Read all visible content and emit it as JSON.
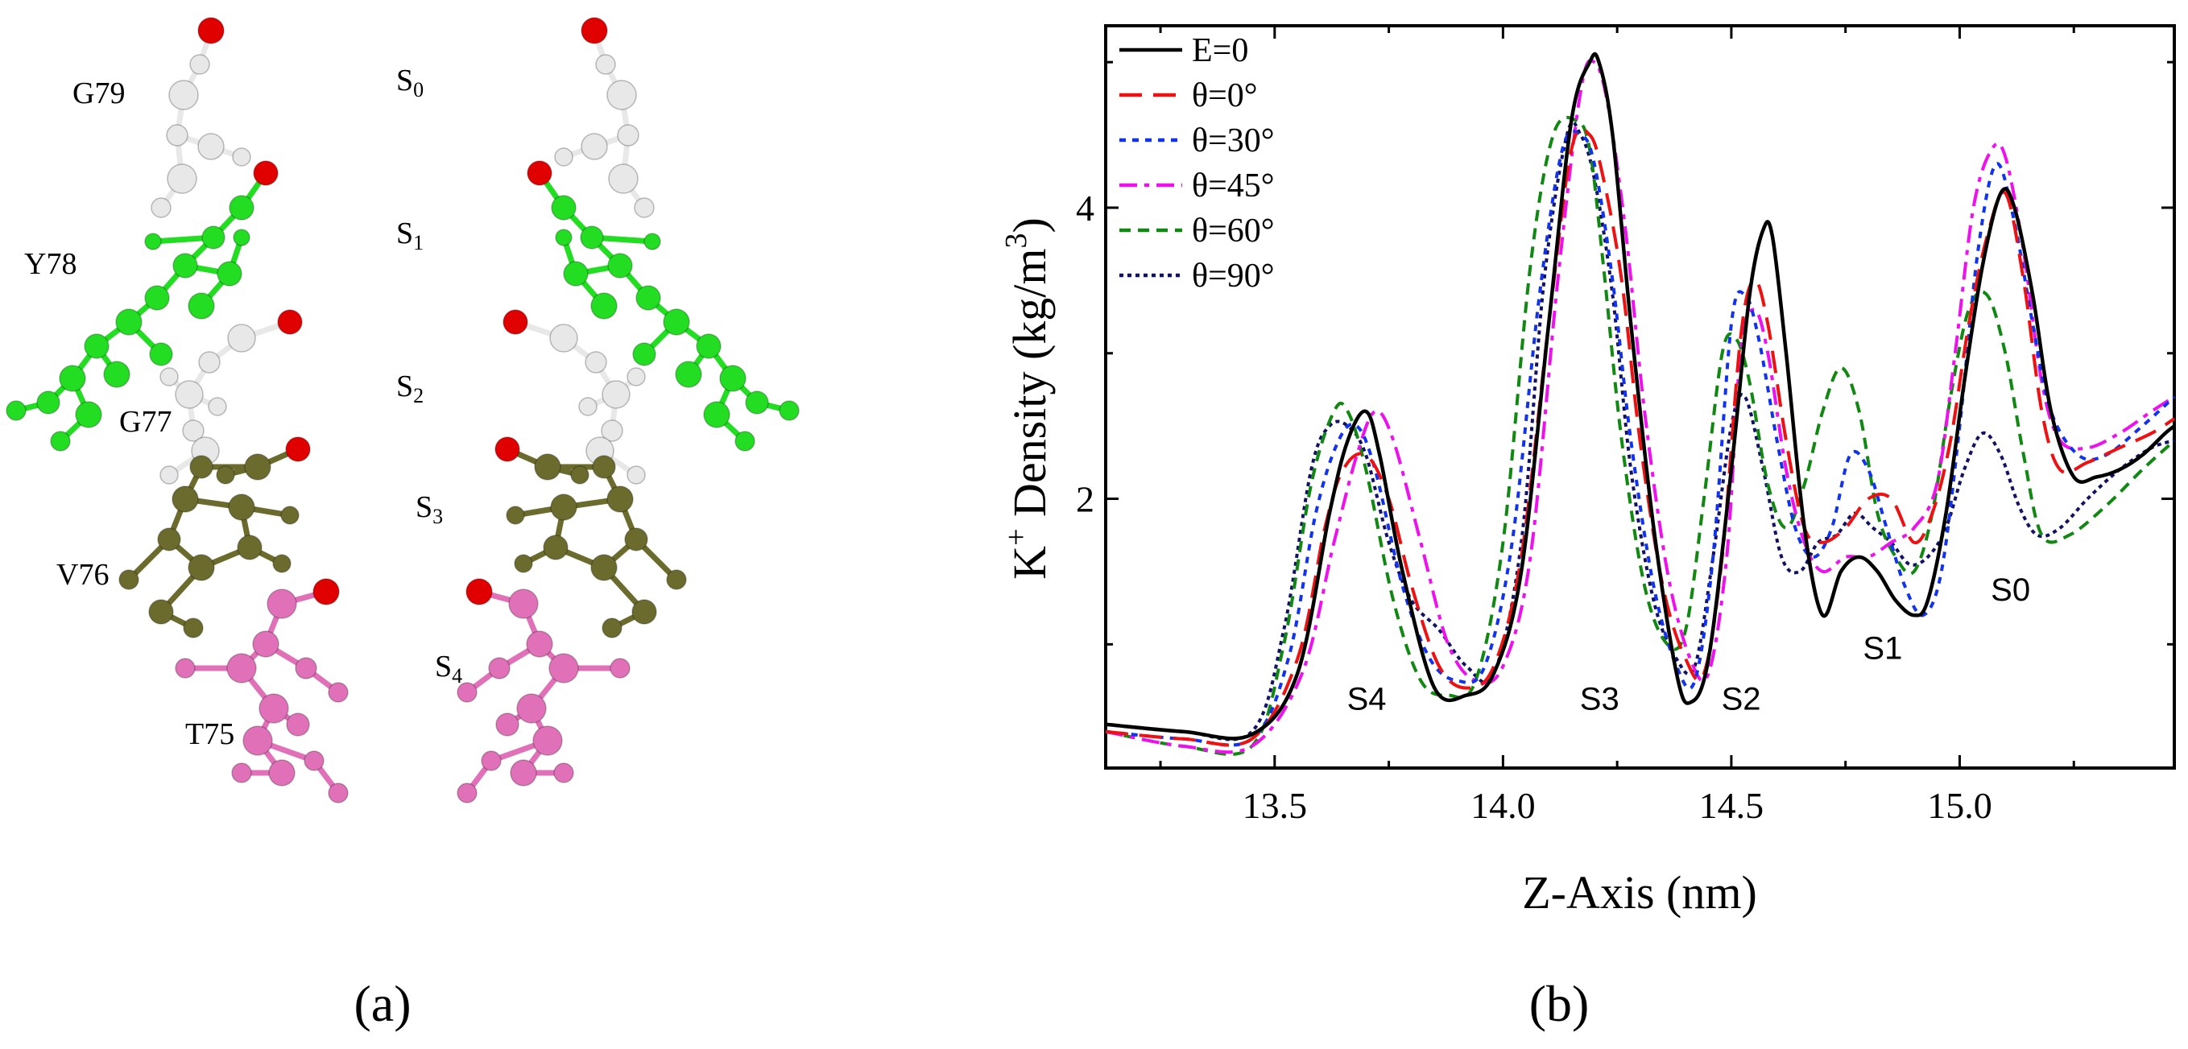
{
  "panel_a": {
    "label": "(a)",
    "residue_labels": [
      "G79",
      "Y78",
      "G77",
      "V76",
      "T75"
    ],
    "site_labels": [
      {
        "main": "S",
        "sub": "0"
      },
      {
        "main": "S",
        "sub": "1"
      },
      {
        "main": "S",
        "sub": "2"
      },
      {
        "main": "S",
        "sub": "3"
      },
      {
        "main": "S",
        "sub": "4"
      }
    ],
    "colors": {
      "oxygen": "#e00000",
      "glycine": "#e8e8e8",
      "tyrosine": "#22dd22",
      "valine": "#6b6b2e",
      "threonine": "#e070b8"
    }
  },
  "panel_b": {
    "label": "(b)"
  },
  "chart_data": {
    "type": "line",
    "title": "",
    "xlabel": "Z-Axis (nm)",
    "ylabel_prefix": "K",
    "ylabel_sup": "+",
    "ylabel_main": " Density (kg/m",
    "ylabel_unit_sup": "3",
    "ylabel_end": ")",
    "xlim": [
      13.13,
      15.47
    ],
    "ylim": [
      0.15,
      5.25
    ],
    "xticks": [
      13.5,
      14.0,
      14.5,
      15.0
    ],
    "xtick_labels": [
      "13.5",
      "14.0",
      "14.5",
      "15.0"
    ],
    "yticks": [
      2,
      4
    ],
    "ytick_labels": [
      "2",
      "4"
    ],
    "legend_position": "top-left",
    "site_annotations": [
      {
        "main": "S",
        "sub": "4",
        "x": 13.69,
        "y": 0.55
      },
      {
        "main": "S",
        "sub": "3",
        "x": 14.2,
        "y": 0.55
      },
      {
        "main": "S",
        "sub": "2",
        "x": 14.51,
        "y": 0.55
      },
      {
        "main": "S",
        "sub": "1",
        "x": 14.82,
        "y": 0.9
      },
      {
        "main": "S",
        "sub": "0",
        "x": 15.1,
        "y": 1.3
      }
    ],
    "series": [
      {
        "name": "E=0",
        "color": "#000000",
        "dash": "solid",
        "x": [
          13.13,
          13.3,
          13.45,
          13.55,
          13.62,
          13.66,
          13.7,
          13.73,
          13.78,
          13.85,
          13.92,
          13.98,
          14.04,
          14.1,
          14.15,
          14.19,
          14.21,
          14.24,
          14.28,
          14.33,
          14.38,
          14.41,
          14.45,
          14.5,
          14.54,
          14.57,
          14.59,
          14.62,
          14.66,
          14.7,
          14.74,
          14.78,
          14.82,
          14.86,
          14.9,
          14.93,
          14.97,
          15.01,
          15.05,
          15.09,
          15.12,
          15.16,
          15.2,
          15.25,
          15.3,
          15.35,
          15.4,
          15.45,
          15.47
        ],
        "y": [
          0.45,
          0.4,
          0.38,
          0.8,
          1.9,
          2.4,
          2.6,
          2.3,
          1.5,
          0.7,
          0.65,
          0.8,
          1.5,
          3.2,
          4.6,
          5.0,
          5.0,
          4.5,
          3.2,
          1.8,
          0.8,
          0.6,
          0.9,
          2.2,
          3.4,
          3.85,
          3.8,
          3.0,
          1.8,
          1.2,
          1.5,
          1.6,
          1.5,
          1.3,
          1.2,
          1.3,
          1.9,
          2.8,
          3.6,
          4.1,
          4.0,
          3.4,
          2.6,
          2.15,
          2.15,
          2.2,
          2.3,
          2.45,
          2.5
        ]
      },
      {
        "name": "θ=0°",
        "color": "#ee1111",
        "dash": "long",
        "x": [
          13.13,
          13.3,
          13.45,
          13.55,
          13.61,
          13.65,
          13.7,
          13.75,
          13.8,
          13.86,
          13.92,
          13.98,
          14.04,
          14.1,
          14.15,
          14.19,
          14.22,
          14.26,
          14.3,
          14.35,
          14.4,
          14.44,
          14.48,
          14.52,
          14.55,
          14.58,
          14.62,
          14.66,
          14.7,
          14.75,
          14.8,
          14.85,
          14.9,
          14.94,
          14.98,
          15.02,
          15.06,
          15.1,
          15.14,
          15.18,
          15.22,
          15.28,
          15.35,
          15.42,
          15.47
        ],
        "y": [
          0.4,
          0.35,
          0.35,
          0.9,
          1.8,
          2.2,
          2.3,
          2.0,
          1.4,
          0.85,
          0.7,
          0.85,
          1.6,
          3.2,
          4.4,
          4.5,
          4.2,
          3.5,
          2.4,
          1.4,
          0.9,
          0.8,
          1.6,
          3.1,
          3.5,
          3.2,
          2.4,
          1.8,
          1.7,
          1.8,
          2.0,
          2.0,
          1.7,
          1.9,
          2.4,
          3.2,
          3.8,
          4.1,
          3.5,
          2.6,
          2.2,
          2.25,
          2.35,
          2.45,
          2.55
        ]
      },
      {
        "name": "θ=30°",
        "color": "#1133ee",
        "dash": "dot",
        "x": [
          13.13,
          13.3,
          13.45,
          13.53,
          13.59,
          13.64,
          13.68,
          13.72,
          13.78,
          13.84,
          13.9,
          13.96,
          14.02,
          14.08,
          14.13,
          14.17,
          14.2,
          14.24,
          14.28,
          14.33,
          14.38,
          14.42,
          14.46,
          14.5,
          14.53,
          14.56,
          14.6,
          14.64,
          14.68,
          14.72,
          14.76,
          14.8,
          14.84,
          14.88,
          14.92,
          14.96,
          15.0,
          15.04,
          15.08,
          15.12,
          15.16,
          15.2,
          15.26,
          15.32,
          15.4,
          15.47
        ],
        "y": [
          0.4,
          0.35,
          0.35,
          0.9,
          1.9,
          2.4,
          2.5,
          2.2,
          1.4,
          0.9,
          0.75,
          0.85,
          1.7,
          3.4,
          4.4,
          4.5,
          4.3,
          3.5,
          2.4,
          1.4,
          0.85,
          0.75,
          1.6,
          3.2,
          3.4,
          3.1,
          2.4,
          1.8,
          1.6,
          1.8,
          2.3,
          2.2,
          1.8,
          1.4,
          1.2,
          1.5,
          2.5,
          3.7,
          4.3,
          3.9,
          3.2,
          2.6,
          2.3,
          2.3,
          2.5,
          2.7
        ]
      },
      {
        "name": "θ=45°",
        "color": "#ee11ee",
        "dash": "dashdot",
        "x": [
          13.13,
          13.3,
          13.45,
          13.56,
          13.63,
          13.68,
          13.72,
          13.76,
          13.82,
          13.88,
          13.94,
          14.0,
          14.06,
          14.12,
          14.17,
          14.2,
          14.23,
          14.27,
          14.31,
          14.36,
          14.41,
          14.45,
          14.49,
          14.52,
          14.55,
          14.58,
          14.62,
          14.66,
          14.7,
          14.75,
          14.8,
          14.85,
          14.9,
          14.95,
          14.99,
          15.03,
          15.07,
          15.1,
          15.14,
          15.18,
          15.22,
          15.28,
          15.35,
          15.42,
          15.47
        ],
        "y": [
          0.4,
          0.3,
          0.3,
          0.8,
          1.7,
          2.3,
          2.6,
          2.4,
          1.7,
          1.0,
          0.75,
          0.85,
          1.6,
          3.5,
          4.8,
          5.0,
          4.7,
          3.8,
          2.6,
          1.5,
          0.9,
          0.8,
          1.6,
          3.0,
          3.3,
          3.0,
          2.2,
          1.7,
          1.5,
          1.6,
          1.6,
          1.7,
          1.8,
          2.1,
          3.0,
          4.0,
          4.4,
          4.35,
          3.7,
          2.8,
          2.4,
          2.35,
          2.45,
          2.6,
          2.7
        ]
      },
      {
        "name": "θ=60°",
        "color": "#118811",
        "dash": "dash",
        "x": [
          13.13,
          13.3,
          13.45,
          13.52,
          13.58,
          13.63,
          13.66,
          13.7,
          13.76,
          13.82,
          13.88,
          13.94,
          14.0,
          14.06,
          14.11,
          14.16,
          14.19,
          14.22,
          14.26,
          14.31,
          14.36,
          14.4,
          14.44,
          14.48,
          14.51,
          14.54,
          14.58,
          14.62,
          14.66,
          14.7,
          14.74,
          14.78,
          14.82,
          14.86,
          14.9,
          14.94,
          14.98,
          15.02,
          15.06,
          15.1,
          15.14,
          15.18,
          15.24,
          15.32,
          15.4,
          15.47
        ],
        "y": [
          0.4,
          0.3,
          0.3,
          1.0,
          2.1,
          2.6,
          2.6,
          2.2,
          1.3,
          0.75,
          0.65,
          0.75,
          1.7,
          3.6,
          4.5,
          4.6,
          4.4,
          3.6,
          2.4,
          1.4,
          1.0,
          1.1,
          2.0,
          3.0,
          3.1,
          2.8,
          2.1,
          1.8,
          2.1,
          2.6,
          2.9,
          2.6,
          1.9,
          1.6,
          1.5,
          1.9,
          2.7,
          3.3,
          3.4,
          3.0,
          2.3,
          1.75,
          1.75,
          1.95,
          2.2,
          2.4
        ]
      },
      {
        "name": "θ=90°",
        "color": "#111166",
        "dash": "fine",
        "x": [
          13.13,
          13.3,
          13.45,
          13.52,
          13.58,
          13.62,
          13.66,
          13.7,
          13.75,
          13.8,
          13.86,
          13.92,
          13.98,
          14.04,
          14.09,
          14.14,
          14.17,
          14.2,
          14.24,
          14.28,
          14.33,
          14.38,
          14.42,
          14.46,
          14.5,
          14.53,
          14.57,
          14.61,
          14.65,
          14.69,
          14.73,
          14.77,
          14.81,
          14.85,
          14.89,
          14.93,
          14.97,
          15.01,
          15.05,
          15.09,
          15.13,
          15.17,
          15.22,
          15.28,
          15.35,
          15.42,
          15.47
        ],
        "y": [
          0.45,
          0.4,
          0.4,
          1.1,
          2.2,
          2.5,
          2.5,
          2.3,
          1.7,
          1.3,
          1.1,
          0.85,
          0.8,
          1.7,
          3.5,
          4.5,
          4.5,
          4.2,
          3.4,
          2.2,
          1.3,
          0.9,
          0.85,
          1.6,
          2.5,
          2.7,
          2.2,
          1.6,
          1.5,
          1.7,
          1.75,
          1.9,
          1.8,
          1.7,
          1.55,
          1.6,
          1.8,
          2.2,
          2.45,
          2.3,
          1.95,
          1.75,
          1.8,
          2.0,
          2.2,
          2.35,
          2.4
        ]
      }
    ]
  }
}
